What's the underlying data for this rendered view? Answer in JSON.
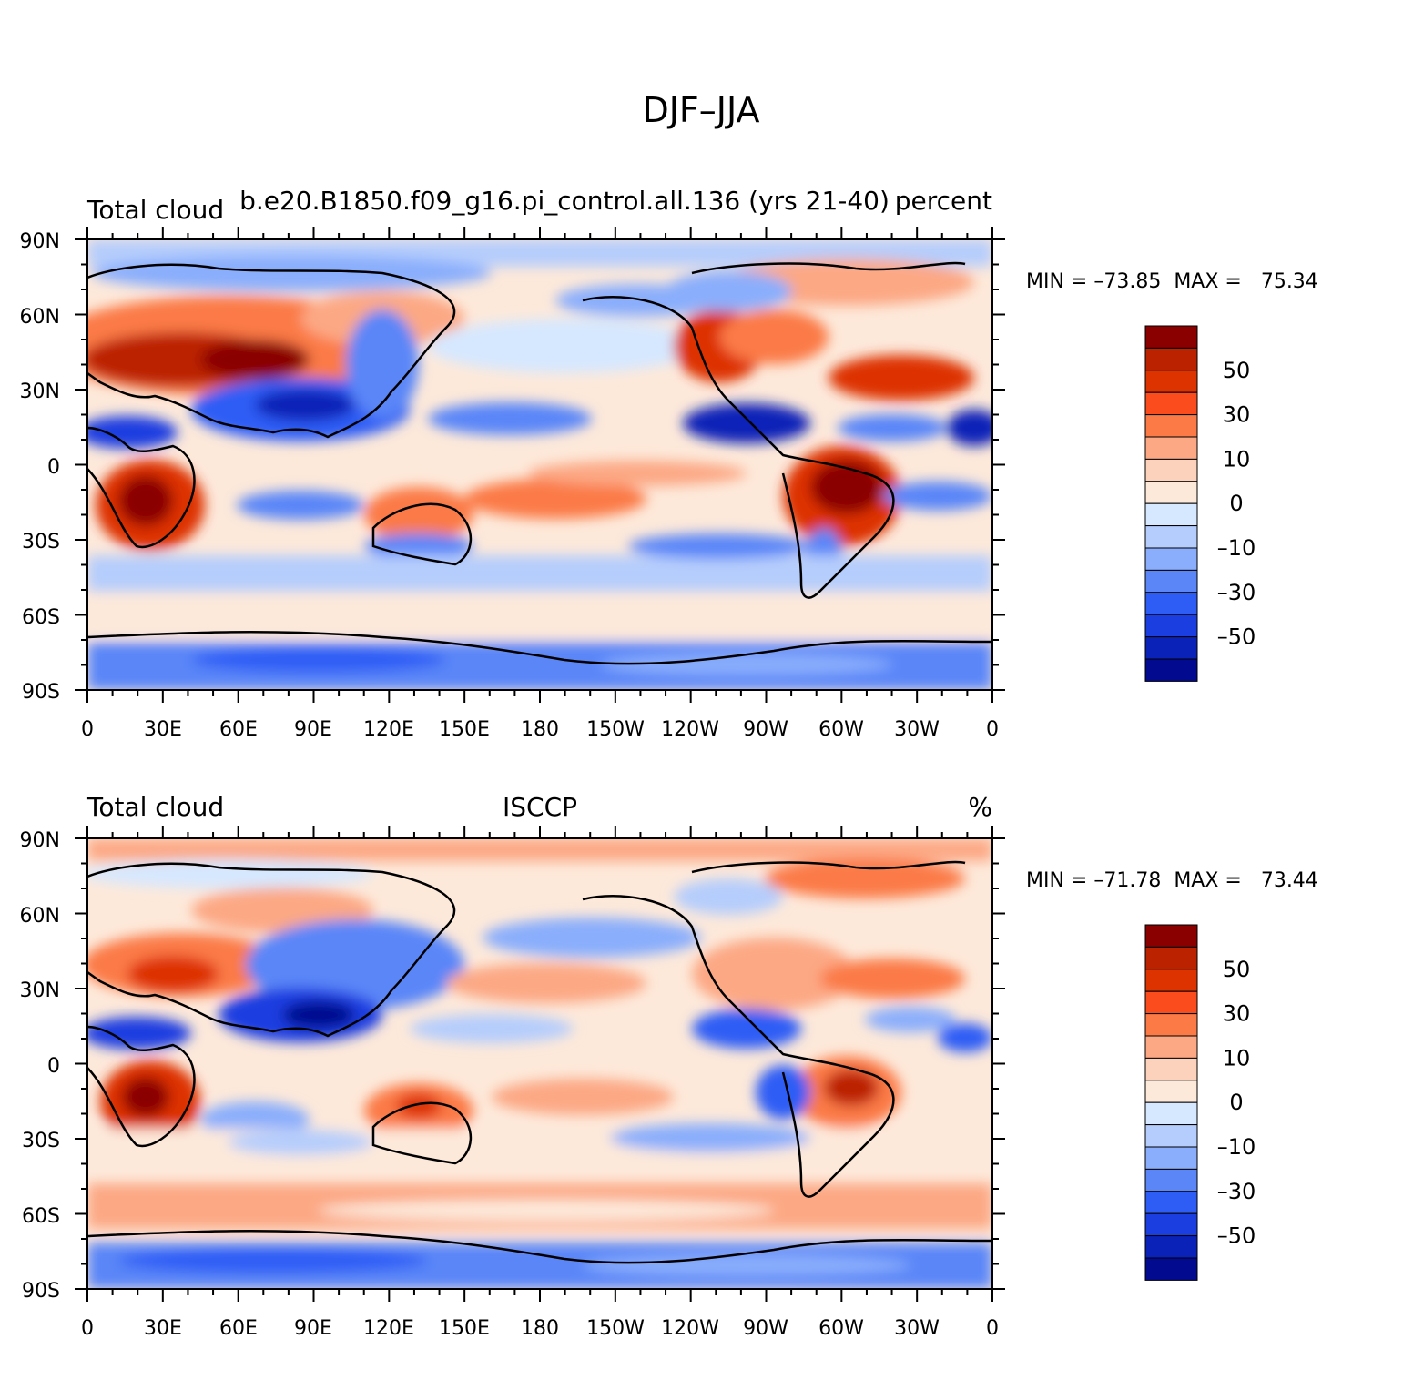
{
  "figure_title": "DJF–JJA",
  "panels": [
    {
      "title_left": "Total cloud",
      "title_center": "b.e20.B1850.f09_g16.pi_control.all.136 (yrs 21-40)",
      "title_right": "percent",
      "min_max_text": "MIN = –73.85  MAX =   75.34"
    },
    {
      "title_left": "Total cloud",
      "title_center": "ISCCP",
      "title_right": "%",
      "min_max_text": "MIN = –71.78  MAX =   73.44"
    }
  ],
  "axes": {
    "lat_labels": [
      "90N",
      "60N",
      "30N",
      "0",
      "30S",
      "60S",
      "90S"
    ],
    "lon_labels": [
      "0",
      "30E",
      "60E",
      "90E",
      "120E",
      "150E",
      "180",
      "150W",
      "120W",
      "90W",
      "60W",
      "30W",
      "0"
    ]
  },
  "colorbar": {
    "labels": [
      "50",
      "30",
      "10",
      "0",
      "–10",
      "–30",
      "–50"
    ],
    "colors_top_to_bottom": [
      "#8a0000",
      "#bb2200",
      "#dd3300",
      "#fa4c1c",
      "#fb7a46",
      "#fca884",
      "#fdd2bc",
      "#fde9da",
      "#d6e8ff",
      "#b5cdfc",
      "#8aaefc",
      "#5a86f8",
      "#2e5df5",
      "#1a3ee0",
      "#0a22b8",
      "#020a90"
    ]
  },
  "colors": {
    "land_outline": "#000000",
    "background": "#ffffff"
  }
}
